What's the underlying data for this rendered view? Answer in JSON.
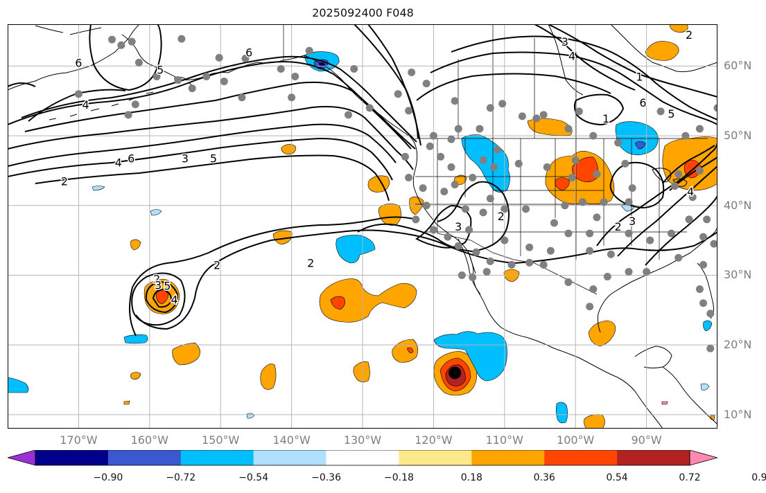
{
  "title": "2025092400 F048",
  "colors": {
    "ocean": "#ffffff",
    "grid": "#b5b5b5",
    "coast": "#000000",
    "contour": "#000000",
    "station": "#808080",
    "axis_label": "#7d7d7d"
  },
  "axes": {
    "lat_labels": [
      {
        "lat": 60,
        "text": "60°N"
      },
      {
        "lat": 50,
        "text": "50°N"
      },
      {
        "lat": 40,
        "text": "40°N"
      },
      {
        "lat": 30,
        "text": "30°N"
      },
      {
        "lat": 20,
        "text": "20°N"
      },
      {
        "lat": 10,
        "text": "10°N"
      }
    ],
    "lon_labels": [
      {
        "lon": -170,
        "text": "170°W"
      },
      {
        "lon": -160,
        "text": "160°W"
      },
      {
        "lon": -150,
        "text": "150°W"
      },
      {
        "lon": -140,
        "text": "140°W"
      },
      {
        "lon": -130,
        "text": "130°W"
      },
      {
        "lon": -120,
        "text": "120°W"
      },
      {
        "lon": -110,
        "text": "110°W"
      },
      {
        "lon": -100,
        "text": "100°W"
      },
      {
        "lon": -90,
        "text": "90°W"
      }
    ],
    "lon_range": [
      -180,
      -80
    ],
    "lat_range": [
      8,
      66
    ]
  },
  "colorbar": {
    "colors": [
      "#9b30d6",
      "#00008b",
      "#3a58d0",
      "#00bfff",
      "#b0e0ff",
      "#ffffff",
      "#fde98a",
      "#ffa500",
      "#ff4500",
      "#b22222",
      "#ff89b0"
    ],
    "tick_labels": [
      "−0.90",
      "−0.72",
      "−0.54",
      "−0.36",
      "−0.18",
      "0.18",
      "0.36",
      "0.54",
      "0.72",
      "0.90"
    ]
  },
  "contour_labels": [
    {
      "text": "6",
      "lon": -146,
      "lat": 62
    },
    {
      "text": "6",
      "lon": -170,
      "lat": 60.5
    },
    {
      "text": "5",
      "lon": -158.5,
      "lat": 59.5
    },
    {
      "text": "4",
      "lon": -169,
      "lat": 54.5
    },
    {
      "text": "5",
      "lon": -151,
      "lat": 46.8
    },
    {
      "text": "3",
      "lon": -155,
      "lat": 46.8
    },
    {
      "text": "6",
      "lon": -162.6,
      "lat": 46.8
    },
    {
      "text": "4",
      "lon": -164.4,
      "lat": 46.2
    },
    {
      "text": "2",
      "lon": -172,
      "lat": 43.5
    },
    {
      "text": "2",
      "lon": -159,
      "lat": 29.5
    },
    {
      "text": "5",
      "lon": -157.5,
      "lat": 28.5
    },
    {
      "text": "2",
      "lon": -150.5,
      "lat": 31.5
    },
    {
      "text": "3",
      "lon": -158.8,
      "lat": 28.6
    },
    {
      "text": "4",
      "lon": -156.5,
      "lat": 26.5
    },
    {
      "text": "2",
      "lon": -137.3,
      "lat": 31.8
    },
    {
      "text": "2",
      "lon": -110.5,
      "lat": 38.5
    },
    {
      "text": "3",
      "lon": -116.5,
      "lat": 37.0
    },
    {
      "text": "3",
      "lon": -101.5,
      "lat": 63.5
    },
    {
      "text": "4",
      "lon": -100.5,
      "lat": 61.5
    },
    {
      "text": "1",
      "lon": -95.7,
      "lat": 52.5
    },
    {
      "text": "1",
      "lon": -91,
      "lat": 58.5
    },
    {
      "text": "6",
      "lon": -90.5,
      "lat": 54.8
    },
    {
      "text": "5",
      "lon": -86.5,
      "lat": 53.2
    },
    {
      "text": "2",
      "lon": -84,
      "lat": 64.5
    },
    {
      "text": "2",
      "lon": -94,
      "lat": 37.0
    },
    {
      "text": "3",
      "lon": -92,
      "lat": 37.8
    },
    {
      "text": "4",
      "lon": -83.8,
      "lat": 42.0
    }
  ],
  "stations": [
    [
      -165.3,
      63.8
    ],
    [
      -162.5,
      63.5
    ],
    [
      -155.5,
      63.9
    ],
    [
      -150.2,
      61.2
    ],
    [
      -146.5,
      61.1
    ],
    [
      -137.5,
      62.2
    ],
    [
      -141.5,
      59.6
    ],
    [
      -131.2,
      59.6
    ],
    [
      -123.1,
      59.1
    ],
    [
      -152,
      58.5
    ],
    [
      -156,
      58
    ],
    [
      -159,
      58.5
    ],
    [
      -161.5,
      60.5
    ],
    [
      -170,
      56
    ],
    [
      -163,
      53
    ],
    [
      -162,
      54.5
    ],
    [
      -154,
      56.8
    ],
    [
      -147,
      55.5
    ],
    [
      -140,
      55.5
    ],
    [
      -132,
      53
    ],
    [
      -123.5,
      53.6
    ],
    [
      -117,
      55
    ],
    [
      -112,
      54
    ],
    [
      -110.3,
      54.6
    ],
    [
      -107.5,
      52.8
    ],
    [
      -105.5,
      52.5
    ],
    [
      -104.5,
      53
    ],
    [
      -101,
      51
    ],
    [
      -97.5,
      50
    ],
    [
      -94,
      49
    ],
    [
      -99.5,
      53.5
    ],
    [
      -88,
      53.5
    ],
    [
      -84.5,
      50
    ],
    [
      -82.5,
      51
    ],
    [
      -80,
      54
    ],
    [
      -85.5,
      44.5
    ],
    [
      -86,
      42.8
    ],
    [
      -83.5,
      41.2
    ],
    [
      -84,
      38
    ],
    [
      -81.5,
      38
    ],
    [
      -82,
      35.5
    ],
    [
      -80.5,
      34.5
    ],
    [
      -82,
      31.5
    ],
    [
      -85.5,
      32.5
    ],
    [
      -86.5,
      36
    ],
    [
      -89.5,
      35
    ],
    [
      -90,
      30.5
    ],
    [
      -92.5,
      30.5
    ],
    [
      -95.5,
      29.8
    ],
    [
      -97.5,
      28
    ],
    [
      -98,
      25.5
    ],
    [
      -101,
      29
    ],
    [
      -104.5,
      31.5
    ],
    [
      -106.5,
      31.8
    ],
    [
      -109,
      31.5
    ],
    [
      -112,
      32
    ],
    [
      -114,
      33.3
    ],
    [
      -116.5,
      34.2
    ],
    [
      -118,
      35.5
    ],
    [
      -120,
      36.5
    ],
    [
      -122.5,
      38
    ],
    [
      -121.5,
      42.5
    ],
    [
      -123.5,
      44
    ],
    [
      -117.5,
      45.5
    ],
    [
      -114.5,
      44
    ],
    [
      -113,
      46.5
    ],
    [
      -111,
      48
    ],
    [
      -108,
      46
    ],
    [
      -104,
      45.5
    ],
    [
      -100,
      46.5
    ],
    [
      -97,
      44.5
    ],
    [
      -93,
      46
    ],
    [
      -92,
      42.5
    ],
    [
      -96,
      40.5
    ],
    [
      -99,
      40.5
    ],
    [
      -101.5,
      40
    ],
    [
      -103,
      37.5
    ],
    [
      -107,
      39.5
    ],
    [
      -110,
      39.5
    ],
    [
      -112,
      41
    ],
    [
      -113,
      39
    ],
    [
      -115.5,
      39.5
    ],
    [
      -117,
      43
    ],
    [
      -119,
      47
    ],
    [
      -120.5,
      48.5
    ],
    [
      -116.5,
      51
    ],
    [
      -113.5,
      51
    ],
    [
      -100.5,
      44
    ],
    [
      -98,
      36
    ],
    [
      -95,
      33
    ],
    [
      -98,
      33.5
    ],
    [
      -103.5,
      33.5
    ],
    [
      -106.5,
      34
    ],
    [
      -110,
      35
    ],
    [
      -115,
      36.5
    ],
    [
      -111.5,
      45.5
    ],
    [
      -118.5,
      42
    ],
    [
      -121,
      40
    ],
    [
      -124,
      47
    ],
    [
      -121,
      57.5
    ],
    [
      -125,
      56
    ],
    [
      -129,
      54
    ],
    [
      -139.5,
      58.5
    ],
    [
      -149.5,
      57.8
    ],
    [
      -164,
      63
    ],
    [
      -120,
      50
    ],
    [
      -117.5,
      49.5
    ],
    [
      -101,
      36
    ],
    [
      -97,
      38.3
    ],
    [
      -92.5,
      36
    ],
    [
      -82.5,
      28
    ],
    [
      -82,
      26
    ],
    [
      -81,
      24.5
    ],
    [
      -81,
      19.5
    ],
    [
      -92.5,
      40.5
    ],
    [
      -82.5,
      45
    ],
    [
      -116,
      30
    ],
    [
      -114.5,
      29.7
    ],
    [
      -112.5,
      30.5
    ]
  ],
  "cyclone_markers": [
    {
      "lon": -117,
      "lat": 16
    }
  ]
}
